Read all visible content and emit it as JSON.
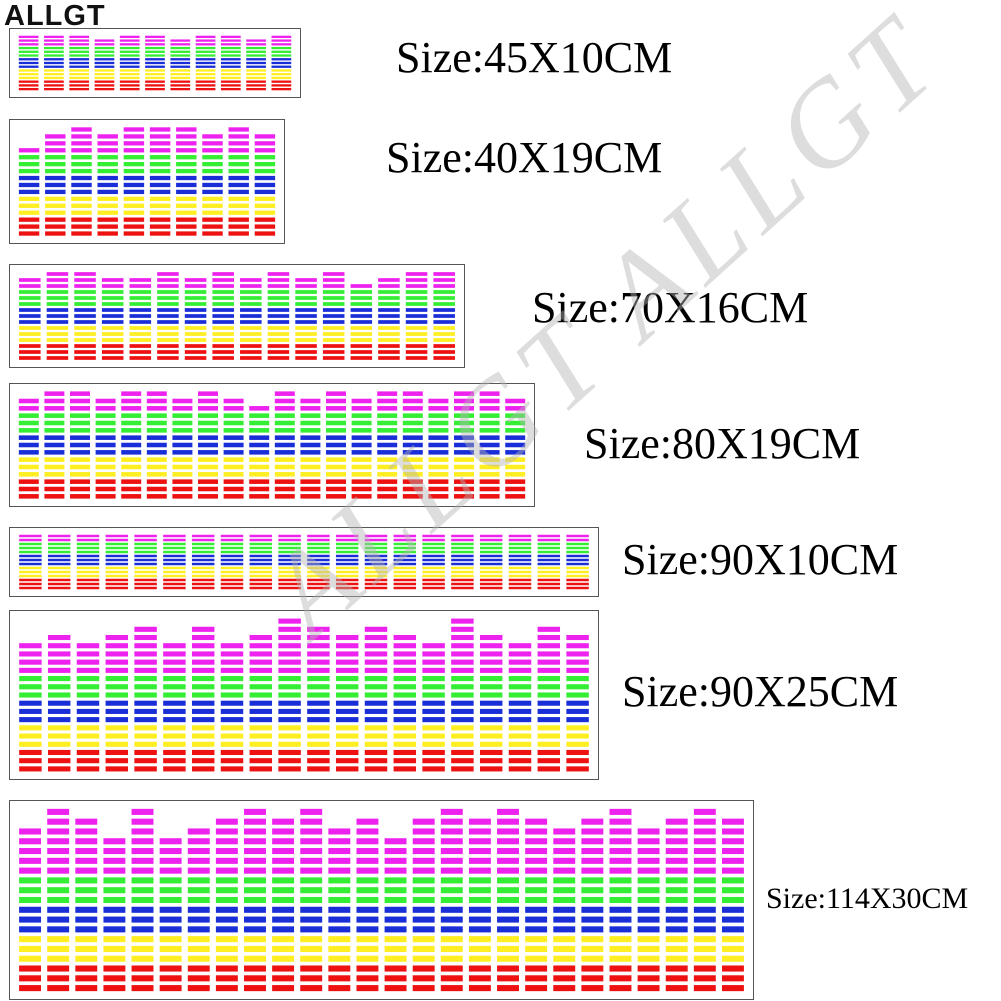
{
  "brand": "ALLGT",
  "watermark": "ALLGT ALLGT",
  "colors": {
    "red": "#ee1111",
    "yellow": "#ffee22",
    "blue": "#1a2ed8",
    "green": "#33ee33",
    "magenta": "#ee22ee"
  },
  "products": [
    {
      "size_label": "Size:45X10CM",
      "columns": 11,
      "levels": [
        3,
        3,
        3,
        2,
        3,
        3,
        2,
        3,
        3,
        2,
        3
      ]
    },
    {
      "size_label": "Size:40X19CM",
      "columns": 10,
      "levels": [
        1,
        3,
        4,
        3,
        4,
        4,
        4,
        3,
        4,
        3
      ]
    },
    {
      "size_label": "Size:70X16CM",
      "columns": 16,
      "levels": [
        2,
        3,
        3,
        2,
        2,
        3,
        2,
        3,
        2,
        3,
        2,
        3,
        1,
        2,
        3,
        3
      ]
    },
    {
      "size_label": "Size:80X19CM",
      "columns": 20,
      "levels": [
        2,
        3,
        3,
        2,
        3,
        3,
        2,
        3,
        2,
        1,
        3,
        2,
        3,
        2,
        3,
        3,
        2,
        3,
        3,
        2
      ]
    },
    {
      "size_label": "Size:90X10CM",
      "columns": 20,
      "levels": [
        2,
        2,
        2,
        2,
        2,
        2,
        2,
        2,
        2,
        2,
        2,
        2,
        2,
        2,
        2,
        2,
        2,
        2,
        2,
        2
      ]
    },
    {
      "size_label": "Size:90X25CM",
      "columns": 20,
      "levels": [
        4,
        5,
        4,
        5,
        6,
        4,
        6,
        4,
        5,
        7,
        6,
        5,
        6,
        5,
        4,
        7,
        5,
        4,
        6,
        5
      ]
    },
    {
      "size_label": "Size:114X30CM",
      "columns": 26,
      "levels": [
        5,
        7,
        6,
        4,
        7,
        4,
        5,
        6,
        7,
        6,
        7,
        5,
        6,
        4,
        6,
        7,
        6,
        7,
        6,
        5,
        6,
        7,
        5,
        6,
        7,
        6
      ]
    }
  ]
}
